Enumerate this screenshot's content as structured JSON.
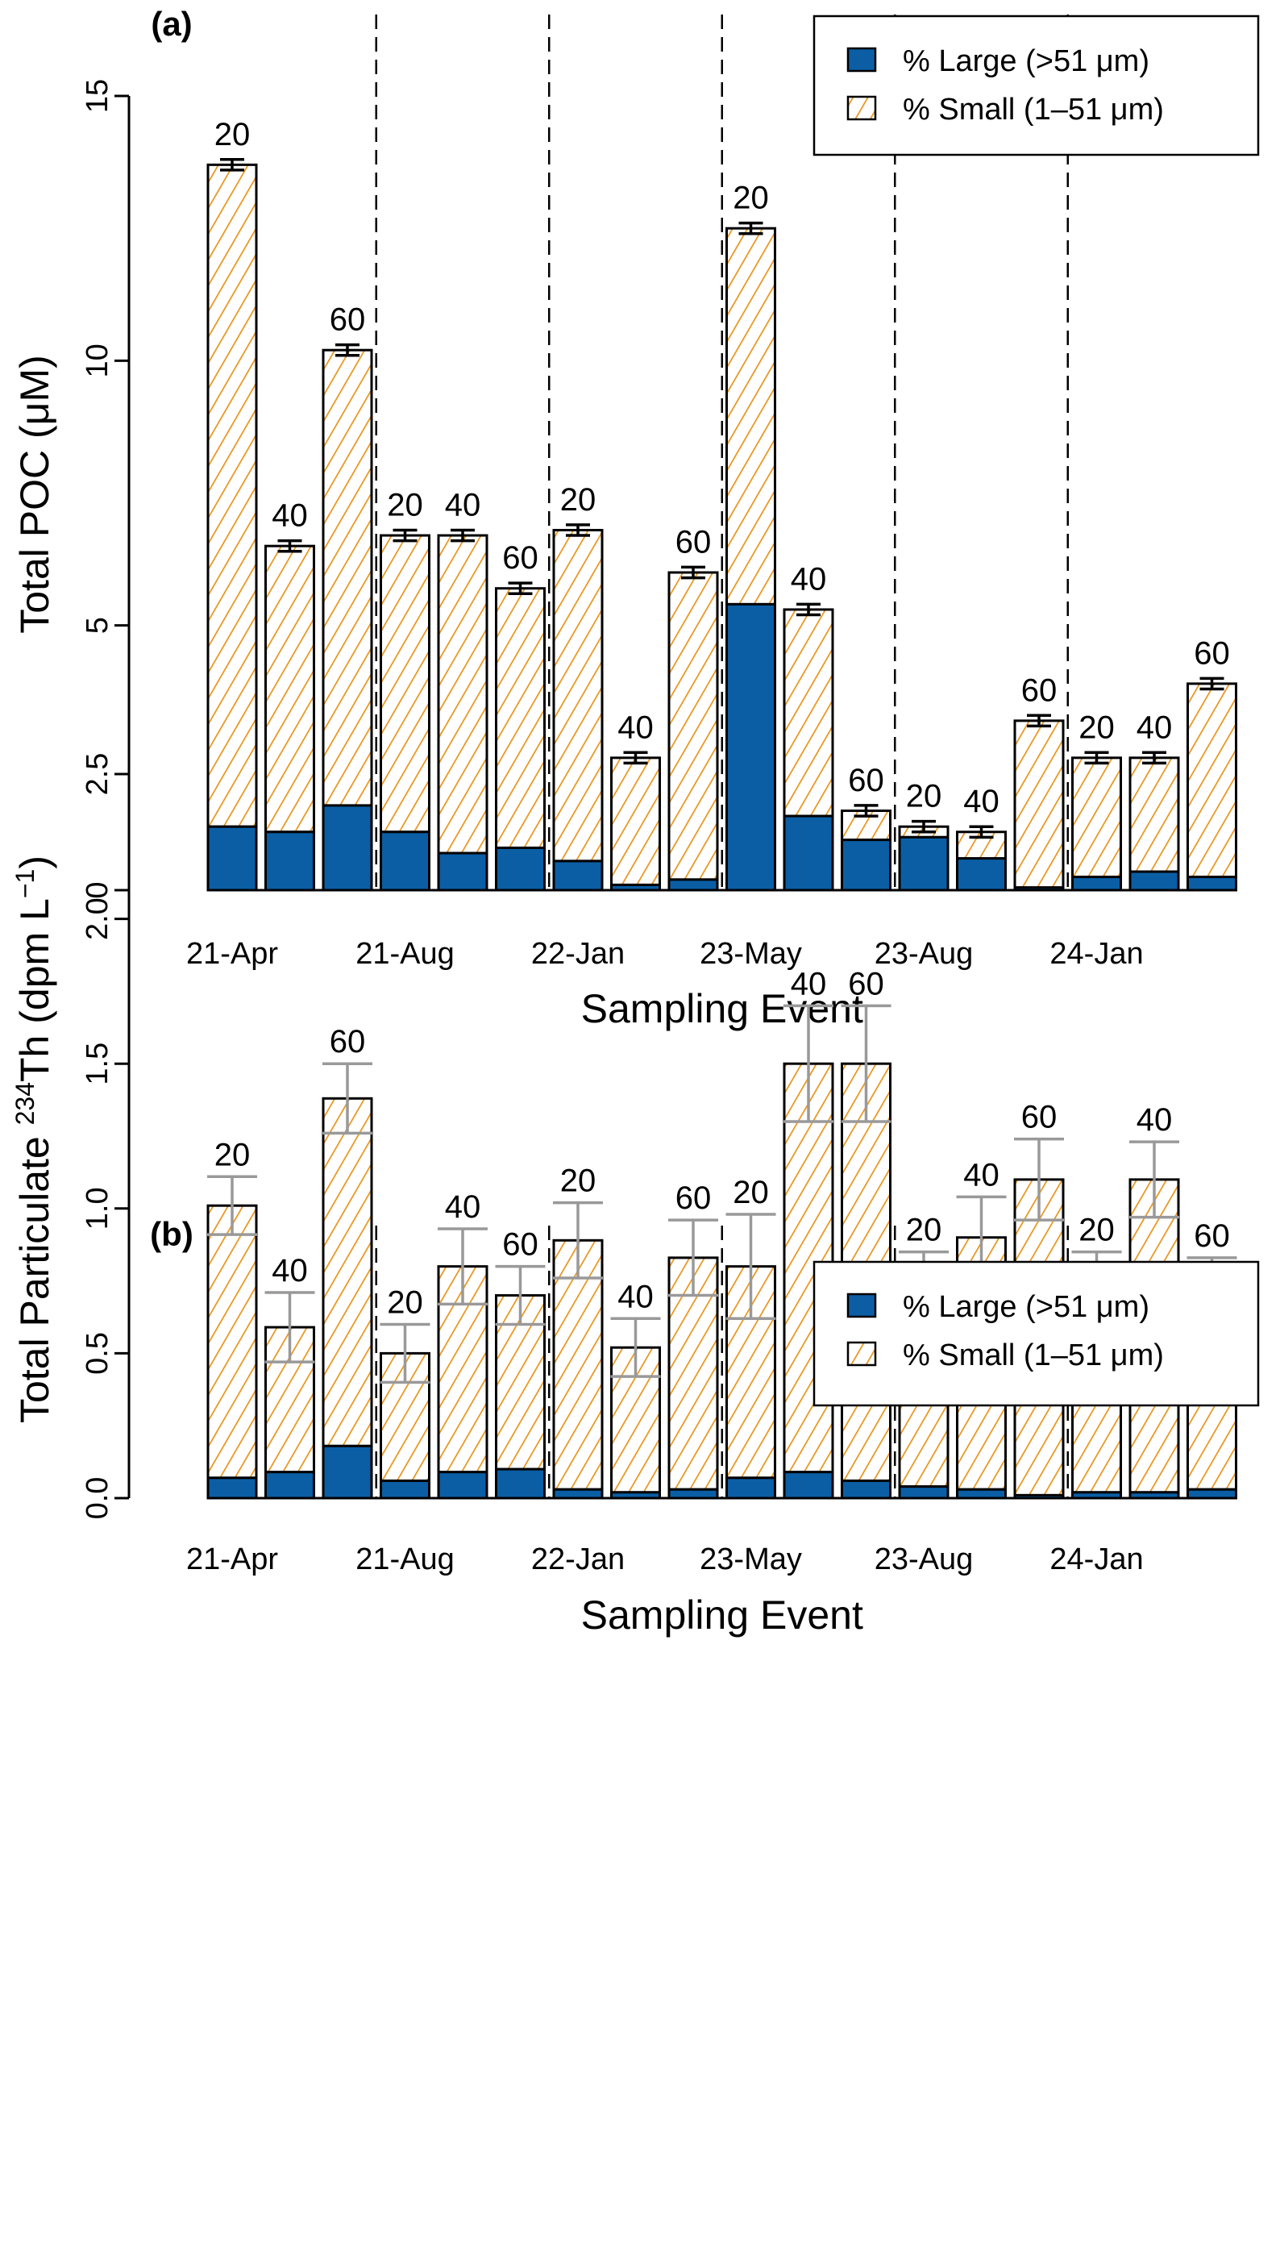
{
  "colors": {
    "large": "#0b5ea4",
    "small_hatch": "#e8961e",
    "error_a": "#000000",
    "error_b": "#999999"
  },
  "chart_data": [
    {
      "type": "bar",
      "stacked": true,
      "panel_label": "(a)",
      "title": "",
      "xlabel": "Sampling Event",
      "ylabel": "Total POC (μM)",
      "ylim": [
        0,
        15
      ],
      "yticks": [
        "0",
        "5",
        "10",
        "15"
      ],
      "ytick_values": [
        0,
        5,
        10,
        15
      ],
      "xtick_labels": [
        "21-Apr",
        "21-Aug",
        "22-Jan",
        "23-May",
        "23-Aug",
        "24-Jan"
      ],
      "xtick_bar_index": [
        0,
        3,
        6,
        9,
        12,
        15
      ],
      "event_separators_after_bar": [
        3,
        6,
        9,
        12,
        15
      ],
      "legend": {
        "placement": "top-right",
        "entries": [
          "% Large (>51 μm)",
          "% Small (1–51 μm)"
        ]
      },
      "bar_labels": [
        "20",
        "40",
        "60",
        "20",
        "40",
        "60",
        "20",
        "40",
        "60",
        "20",
        "40",
        "60",
        "20",
        "40",
        "60",
        "20",
        "40",
        "60"
      ],
      "series": [
        {
          "name": "% Large (>51 μm)",
          "values": [
            1.2,
            1.1,
            1.6,
            1.1,
            0.7,
            0.8,
            0.55,
            0.1,
            0.2,
            5.4,
            1.4,
            0.95,
            1.0,
            0.6,
            0.05,
            0.25,
            0.35,
            0.25
          ]
        },
        {
          "name": "Total",
          "values": [
            13.7,
            6.5,
            10.2,
            6.7,
            6.7,
            5.7,
            6.8,
            2.5,
            6.0,
            12.5,
            5.3,
            1.5,
            1.2,
            1.1,
            3.2,
            2.5,
            2.5,
            3.9
          ]
        }
      ],
      "error": [
        0.1,
        0.1,
        0.1,
        0.1,
        0.1,
        0.1,
        0.1,
        0.1,
        0.1,
        0.1,
        0.1,
        0.1,
        0.1,
        0.1,
        0.1,
        0.1,
        0.1,
        0.1
      ]
    },
    {
      "type": "bar",
      "stacked": true,
      "panel_label": "(b)",
      "title": "",
      "xlabel": "Sampling Event",
      "ylabel": "Total Particulate 234Th (dpm L−1)",
      "ylim": [
        0,
        2.5
      ],
      "yticks": [
        "0.0",
        "0.5",
        "1.0",
        "1.5",
        "2.0",
        "2.5"
      ],
      "ytick_values": [
        0,
        0.5,
        1.0,
        1.5,
        2.0,
        2.5
      ],
      "xtick_labels": [
        "21-Apr",
        "21-Aug",
        "22-Jan",
        "23-May",
        "23-Aug",
        "24-Jan"
      ],
      "xtick_bar_index": [
        0,
        3,
        6,
        9,
        12,
        15
      ],
      "event_separators_after_bar": [
        3,
        6,
        9,
        12,
        15
      ],
      "legend": {
        "placement": "top-right",
        "entries": [
          "% Large (>51 μm)",
          "% Small (1–51 μm)"
        ]
      },
      "bar_labels": [
        "20",
        "40",
        "60",
        "20",
        "40",
        "60",
        "20",
        "40",
        "60",
        "20",
        "40",
        "60",
        "20",
        "40",
        "60",
        "20",
        "40",
        "60"
      ],
      "series": [
        {
          "name": "% Large (>51 μm)",
          "values": [
            0.07,
            0.09,
            0.18,
            0.06,
            0.09,
            0.1,
            0.03,
            0.02,
            0.03,
            0.07,
            0.09,
            0.06,
            0.04,
            0.03,
            0.01,
            0.02,
            0.02,
            0.03
          ]
        },
        {
          "name": "Total",
          "values": [
            1.01,
            0.59,
            1.38,
            0.5,
            0.8,
            0.7,
            0.89,
            0.52,
            0.83,
            0.8,
            1.5,
            1.5,
            0.72,
            0.9,
            1.1,
            0.73,
            1.1,
            0.7
          ]
        }
      ],
      "error": [
        0.1,
        0.12,
        0.12,
        0.1,
        0.13,
        0.1,
        0.13,
        0.1,
        0.13,
        0.18,
        0.2,
        0.2,
        0.13,
        0.14,
        0.14,
        0.12,
        0.13,
        0.13
      ]
    }
  ]
}
